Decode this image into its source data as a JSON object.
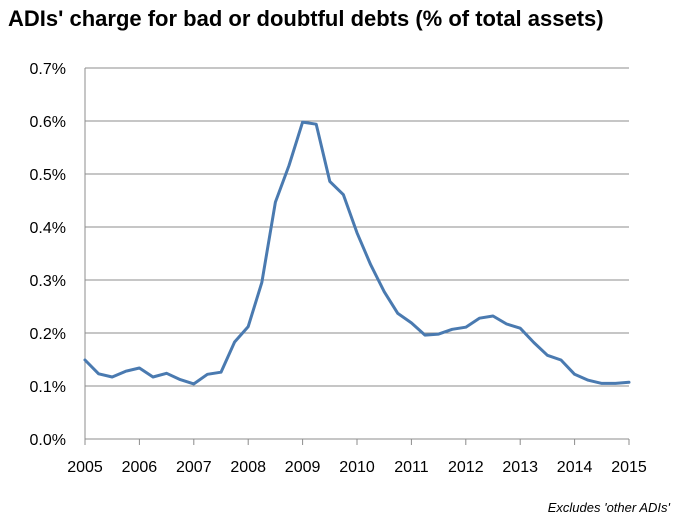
{
  "chart_data": {
    "type": "line",
    "title": "ADIs' charge for bad or doubtful debts (% of total assets)",
    "note": "Excludes 'other ADIs'",
    "xlabel": "",
    "ylabel": "",
    "ylim": [
      0,
      0.7
    ],
    "xlim": [
      2005,
      2015
    ],
    "y_tick_labels": [
      "0.0%",
      "0.1%",
      "0.2%",
      "0.3%",
      "0.4%",
      "0.5%",
      "0.6%",
      "0.7%"
    ],
    "x_tick_labels": [
      "2005",
      "2006",
      "2007",
      "2008",
      "2009",
      "2010",
      "2011",
      "2012",
      "2013",
      "2014",
      "2015"
    ],
    "grid": "horizontal",
    "legend": "none",
    "line_color": "#4a7ab0",
    "series": [
      {
        "x": [
          2005.0,
          2005.25,
          2005.5,
          2005.75,
          2006.0,
          2006.25,
          2006.5,
          2006.75,
          2007.0,
          2007.25,
          2007.5,
          2007.75,
          2008.0,
          2008.25,
          2008.5,
          2008.75,
          2009.0,
          2009.25,
          2009.5,
          2009.75,
          2010.0,
          2010.25,
          2010.5,
          2010.75,
          2011.0,
          2011.25,
          2011.5,
          2011.75,
          2012.0,
          2012.25,
          2012.5,
          2012.75,
          2013.0,
          2013.25,
          2013.5,
          2013.75,
          2014.0,
          2014.25,
          2014.5,
          2014.75,
          2015.0
        ],
        "y": [
          0.149,
          0.123,
          0.117,
          0.128,
          0.134,
          0.117,
          0.124,
          0.112,
          0.104,
          0.122,
          0.126,
          0.183,
          0.212,
          0.295,
          0.447,
          0.516,
          0.598,
          0.594,
          0.486,
          0.461,
          0.389,
          0.329,
          0.278,
          0.237,
          0.219,
          0.196,
          0.198,
          0.207,
          0.211,
          0.228,
          0.232,
          0.217,
          0.209,
          0.182,
          0.158,
          0.149,
          0.122,
          0.111,
          0.105,
          0.105,
          0.107
        ]
      }
    ]
  }
}
